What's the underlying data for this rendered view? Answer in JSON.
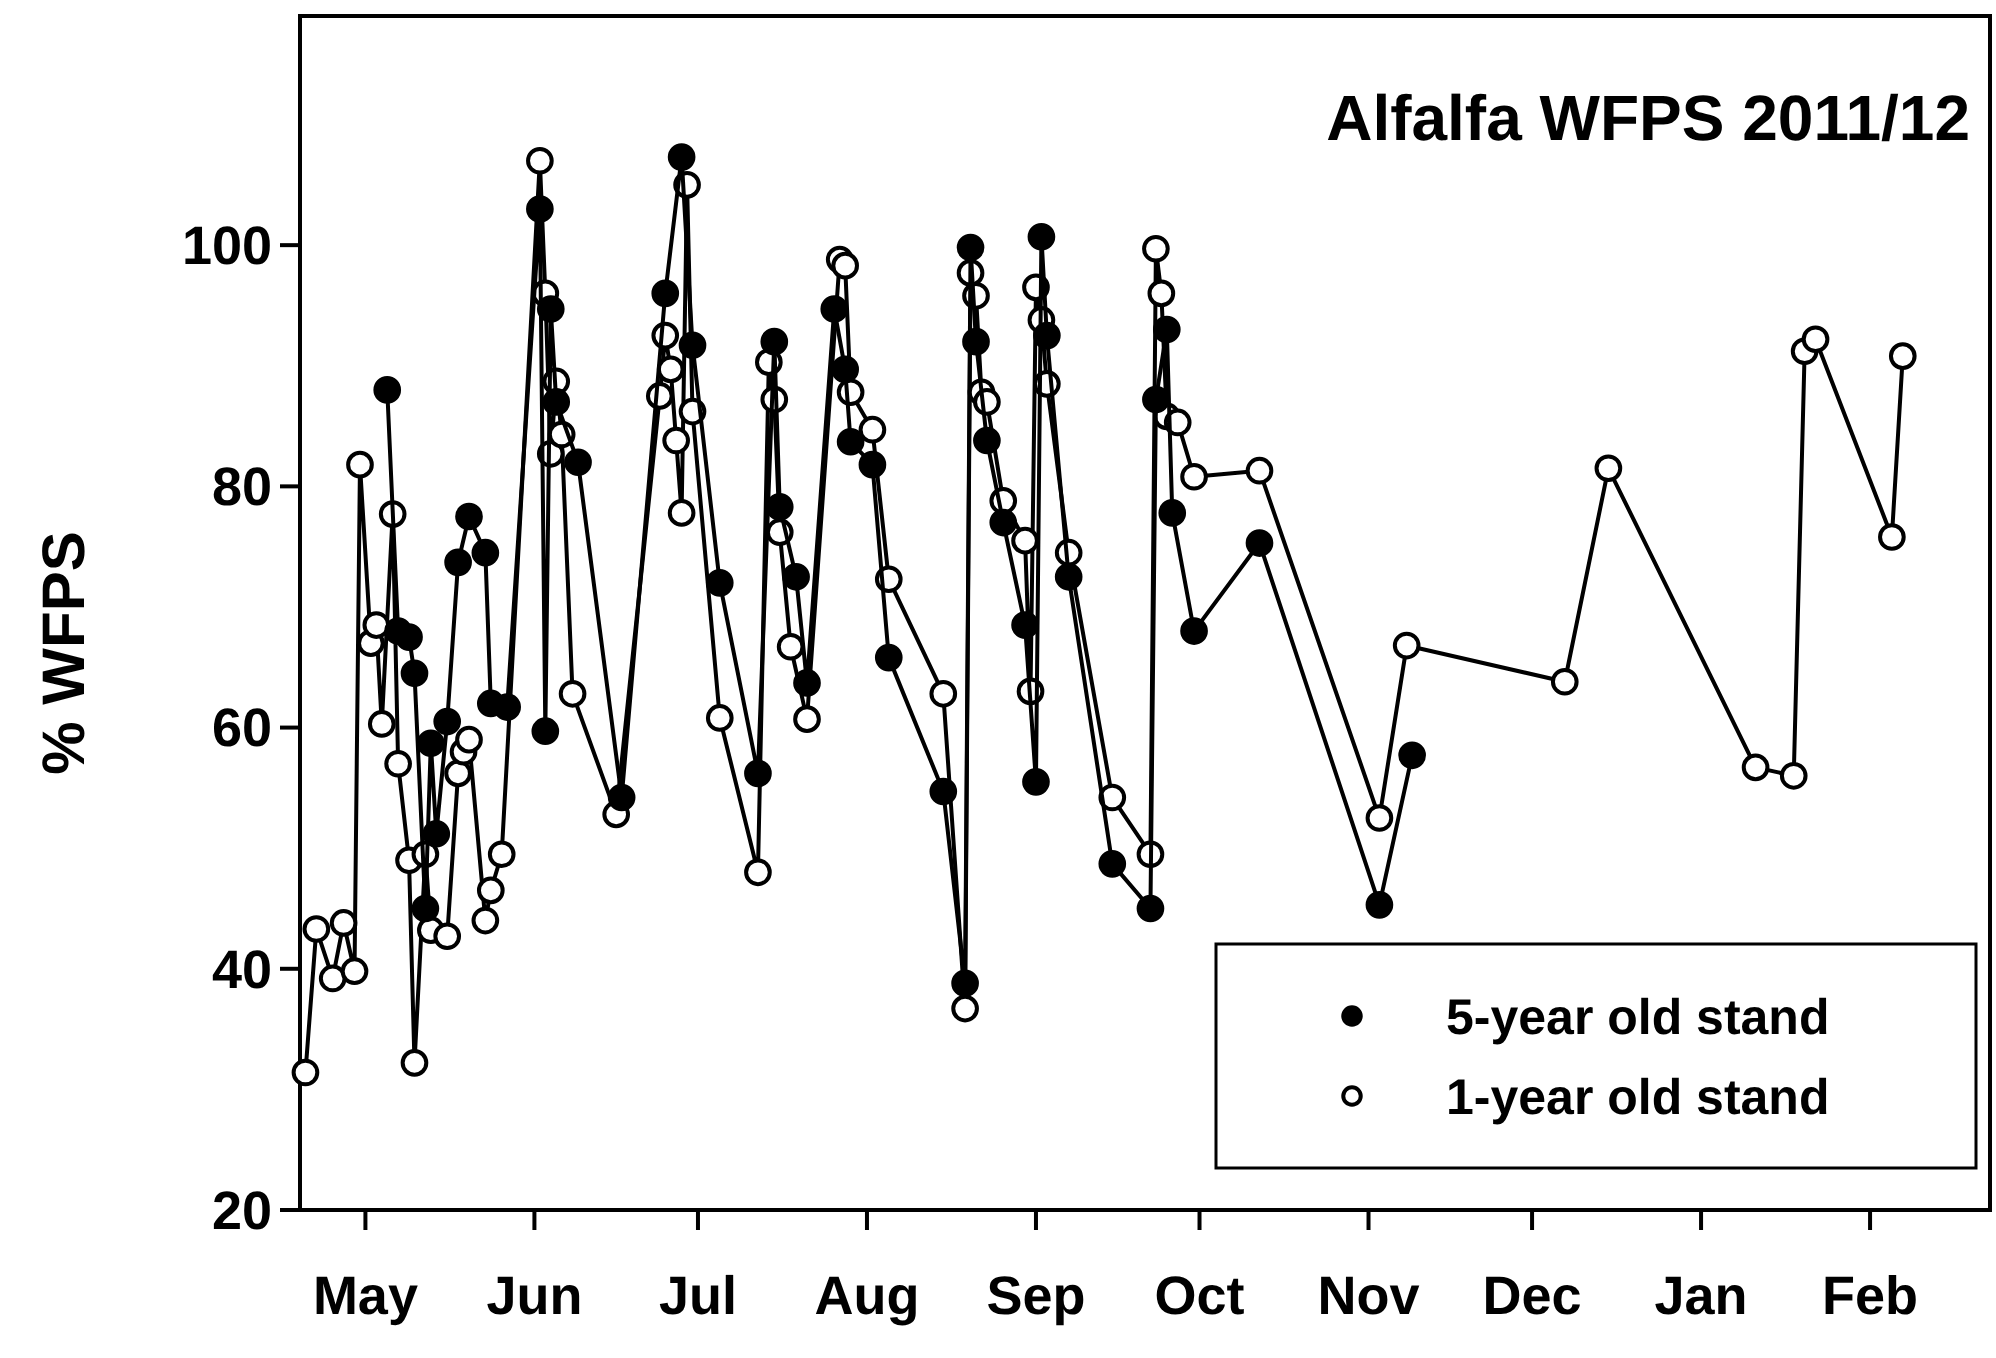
{
  "chart_data": {
    "type": "line",
    "title": "Alfalfa WFPS 2011/12",
    "ylabel": "% WFPS",
    "marker": "circle",
    "legend": "bottom right",
    "grid": false,
    "xlim": [
      "2011-04-19",
      "2012-02-23"
    ],
    "xticks": [
      {
        "value": "2011-05-01",
        "label": "May"
      },
      {
        "value": "2011-06-01",
        "label": "Jun"
      },
      {
        "value": "2011-07-01",
        "label": "Jul"
      },
      {
        "value": "2011-08-01",
        "label": "Aug"
      },
      {
        "value": "2011-09-01",
        "label": "Sep"
      },
      {
        "value": "2011-10-01",
        "label": "Oct"
      },
      {
        "value": "2011-11-01",
        "label": "Nov"
      },
      {
        "value": "2011-12-01",
        "label": "Dec"
      },
      {
        "value": "2012-01-01",
        "label": "Jan"
      },
      {
        "value": "2012-02-01",
        "label": "Feb"
      }
    ],
    "ylim": [
      20,
      119
    ],
    "yticks": [
      20,
      40,
      60,
      80,
      100
    ],
    "series": [
      {
        "name": "5-year old stand",
        "color": "#000000",
        "x": [
          "2011-05-05",
          "2011-05-07",
          "2011-05-09",
          "2011-05-10",
          "2011-05-12",
          "2011-05-13",
          "2011-05-14",
          "2011-05-16",
          "2011-05-18",
          "2011-05-20",
          "2011-05-23",
          "2011-05-24",
          "2011-05-27",
          "2011-06-02",
          "2011-06-03",
          "2011-06-04",
          "2011-06-05",
          "2011-06-09",
          "2011-06-17",
          "2011-06-25",
          "2011-06-28",
          "2011-06-30",
          "2011-07-05",
          "2011-07-12",
          "2011-07-15",
          "2011-07-16",
          "2011-07-19",
          "2011-07-21",
          "2011-07-26",
          "2011-07-28",
          "2011-07-29",
          "2011-08-02",
          "2011-08-05",
          "2011-08-15",
          "2011-08-19",
          "2011-08-20",
          "2011-08-21",
          "2011-08-23",
          "2011-08-26",
          "2011-08-30",
          "2011-09-01",
          "2011-09-02",
          "2011-09-03",
          "2011-09-07",
          "2011-09-15",
          "2011-09-22",
          "2011-09-23",
          "2011-09-25",
          "2011-09-26",
          "2011-09-30",
          "2011-10-12",
          "2011-11-03",
          "2011-11-09"
        ],
        "values": [
          88,
          68,
          67.5,
          64.5,
          45,
          58.7,
          51.2,
          60.5,
          73.7,
          77.5,
          74.5,
          62,
          61.7,
          103,
          59.7,
          94.7,
          87,
          82,
          54.2,
          96,
          107.3,
          91.7,
          72,
          56.2,
          92,
          78.3,
          72.5,
          63.7,
          94.7,
          89.7,
          83.7,
          81.8,
          65.8,
          54.7,
          38.8,
          99.8,
          92,
          83.8,
          77,
          68.5,
          55.5,
          100.7,
          92.5,
          72.5,
          48.7,
          45,
          87.2,
          93,
          77.8,
          68,
          75.3,
          45.3,
          57.7
        ]
      },
      {
        "name": "1-year old stand",
        "color": "#ffffff",
        "x": [
          "2011-04-20",
          "2011-04-22",
          "2011-04-25",
          "2011-04-27",
          "2011-04-29",
          "2011-04-30",
          "2011-05-02",
          "2011-05-03",
          "2011-05-04",
          "2011-05-06",
          "2011-05-07",
          "2011-05-09",
          "2011-05-10",
          "2011-05-12",
          "2011-05-13",
          "2011-05-16",
          "2011-05-18",
          "2011-05-19",
          "2011-05-20",
          "2011-05-23",
          "2011-05-24",
          "2011-05-26",
          "2011-06-02",
          "2011-06-03",
          "2011-06-04",
          "2011-06-05",
          "2011-06-06",
          "2011-06-08",
          "2011-06-16",
          "2011-06-24",
          "2011-06-25",
          "2011-06-26",
          "2011-06-27",
          "2011-06-28",
          "2011-06-29",
          "2011-06-30",
          "2011-07-05",
          "2011-07-12",
          "2011-07-14",
          "2011-07-15",
          "2011-07-16",
          "2011-07-18",
          "2011-07-21",
          "2011-07-27",
          "2011-07-28",
          "2011-07-29",
          "2011-08-02",
          "2011-08-05",
          "2011-08-15",
          "2011-08-19",
          "2011-08-20",
          "2011-08-21",
          "2011-08-22",
          "2011-08-23",
          "2011-08-26",
          "2011-08-30",
          "2011-08-31",
          "2011-09-01",
          "2011-09-02",
          "2011-09-03",
          "2011-09-07",
          "2011-09-15",
          "2011-09-22",
          "2011-09-23",
          "2011-09-24",
          "2011-09-25",
          "2011-09-27",
          "2011-09-30",
          "2011-10-12",
          "2011-11-03",
          "2011-11-08",
          "2011-12-07",
          "2011-12-15",
          "2012-01-11",
          "2012-01-18",
          "2012-01-20",
          "2012-01-22",
          "2012-02-05",
          "2012-02-07"
        ],
        "values": [
          31.4,
          43.3,
          39.2,
          43.8,
          39.8,
          81.8,
          67,
          68.5,
          60.3,
          77.7,
          57,
          49,
          32.2,
          49.5,
          43.2,
          42.7,
          56.2,
          58,
          59,
          44,
          46.5,
          49.5,
          107,
          96,
          82.7,
          88.7,
          84.3,
          62.8,
          52.8,
          87.5,
          92.5,
          89.7,
          83.8,
          77.8,
          105,
          86.2,
          60.8,
          48,
          90.3,
          87.2,
          76.2,
          66.7,
          60.7,
          98.8,
          98.3,
          87.8,
          84.7,
          72.3,
          62.8,
          36.7,
          97.7,
          95.8,
          87.8,
          87,
          78.8,
          75.5,
          63,
          96.5,
          93.8,
          88.5,
          74.5,
          54.2,
          49.5,
          99.7,
          96,
          85.8,
          85.3,
          80.8,
          81.3,
          52.5,
          66.8,
          63.8,
          81.5,
          56.7,
          56,
          91.2,
          92.2,
          75.8,
          90.8
        ]
      }
    ]
  }
}
